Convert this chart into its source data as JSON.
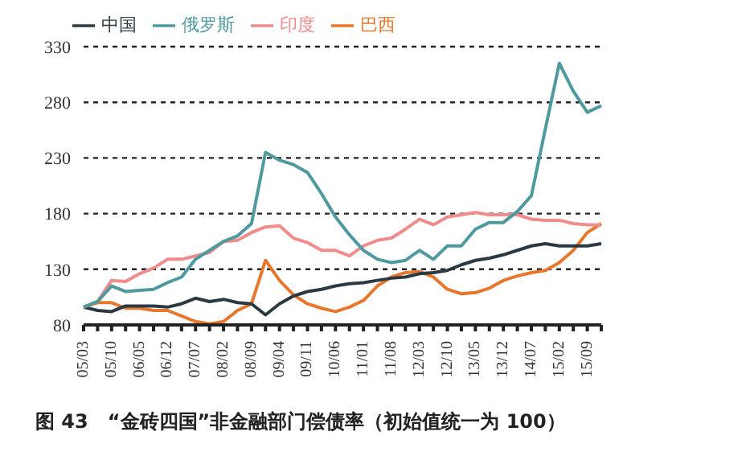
{
  "chart_data": {
    "type": "line",
    "title": "图 43　“金砖四国”非金融部门偿债率（初始值统一为 100）",
    "categories": [
      "05/03",
      null,
      "05/10",
      null,
      "06/05",
      null,
      "06/12",
      null,
      "07/07",
      null,
      "08/02",
      null,
      "08/09",
      null,
      "09/04",
      null,
      "09/11",
      null,
      "10/06",
      null,
      "11/01",
      null,
      "11/08",
      null,
      "12/03",
      null,
      "12/10",
      null,
      "13/05",
      null,
      "13/12",
      null,
      "14/07",
      null,
      "15/02",
      null,
      "15/09",
      null
    ],
    "series": [
      {
        "name": "巴西",
        "color": "#e8772e",
        "values": [
          96,
          100,
          100,
          95,
          95,
          93,
          93,
          88,
          83,
          81,
          83,
          93,
          99,
          138,
          120,
          107,
          99,
          95,
          92,
          96,
          102,
          115,
          123,
          127,
          128,
          123,
          112,
          108,
          109,
          113,
          120,
          124,
          127,
          129,
          136,
          147,
          163,
          171
        ]
      },
      {
        "name": "中国",
        "color": "#2b3a42",
        "values": [
          96,
          93,
          92,
          97,
          97,
          97,
          96,
          99,
          104,
          101,
          103,
          100,
          99,
          89,
          99,
          106,
          110,
          112,
          115,
          117,
          118,
          120,
          122,
          123,
          126,
          127,
          129,
          134,
          138,
          140,
          143,
          147,
          151,
          153,
          151,
          151,
          151,
          153
        ]
      },
      {
        "name": "印度",
        "color": "#f08c8c",
        "values": [
          96,
          101,
          120,
          119,
          126,
          131,
          139,
          139,
          142,
          145,
          155,
          156,
          163,
          168,
          169,
          158,
          154,
          147,
          147,
          142,
          151,
          156,
          158,
          166,
          175,
          170,
          177,
          179,
          181,
          179,
          179,
          179,
          175,
          174,
          174,
          171,
          170,
          170
        ]
      },
      {
        "name": "俄罗斯",
        "color": "#4e9a9e",
        "values": [
          96,
          101,
          115,
          110,
          111,
          112,
          118,
          123,
          139,
          147,
          155,
          160,
          171,
          235,
          228,
          224,
          217,
          198,
          177,
          161,
          147,
          139,
          136,
          138,
          147,
          139,
          151,
          151,
          166,
          172,
          172,
          182,
          196,
          256,
          315,
          290,
          271,
          277
        ]
      }
    ],
    "ylim": [
      80,
      330
    ],
    "yticks": [
      80,
      130,
      180,
      230,
      280,
      330
    ],
    "grid": "y",
    "legend": "top",
    "marker": "none",
    "line_style": "solid"
  }
}
